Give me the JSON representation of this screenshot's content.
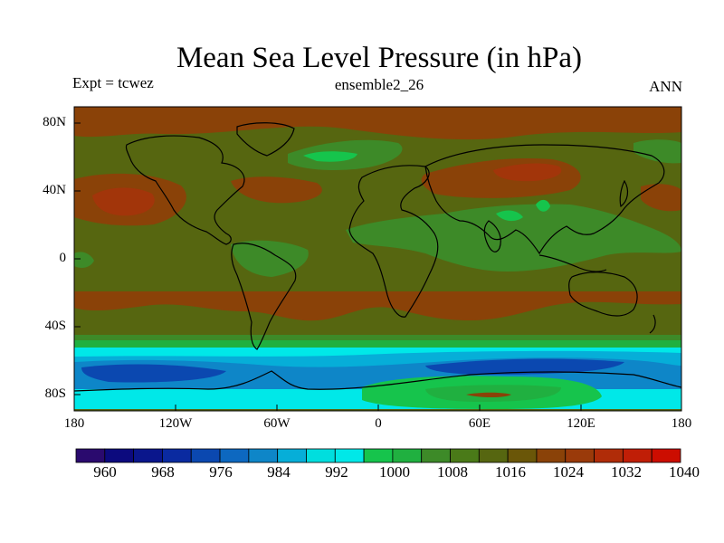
{
  "title": "Mean Sea Level Pressure (in hPa)",
  "left_label": "Expt = tcwez",
  "center_label": "ensemble2_26",
  "right_label": "ANN",
  "lat_labels": [
    "80N",
    "40N",
    "0",
    "40S",
    "80S"
  ],
  "lon_labels": [
    "180",
    "120W",
    "60W",
    "0",
    "60E",
    "120E",
    "180"
  ],
  "colorbar": {
    "labels": [
      "960",
      "968",
      "976",
      "984",
      "992",
      "1000",
      "1008",
      "1016",
      "1024",
      "1032",
      "1040"
    ],
    "colors": [
      "#2a0a6e",
      "#0c0a7e",
      "#0a168c",
      "#0a2aa0",
      "#0b48b0",
      "#0d68c0",
      "#0e86c8",
      "#06aed8",
      "#00dede",
      "#00e8e8",
      "#16c44c",
      "#20b040",
      "#3d8a28",
      "#4a7a18",
      "#566610",
      "#6a5608",
      "#8a4208",
      "#9a3a0a",
      "#b02c08",
      "#c01e06",
      "#cc0d00"
    ]
  },
  "colors": {
    "background_field": "#566610",
    "high": "#8a4208",
    "very_high": "#a2350a",
    "moderate": "#3d8a28",
    "mid_green": "#20b040",
    "bright_green": "#16c44c",
    "cyan": "#00e8e8",
    "light_blue": "#06aed8",
    "blue": "#0e86c8",
    "dark_blue": "#0b48b0"
  }
}
